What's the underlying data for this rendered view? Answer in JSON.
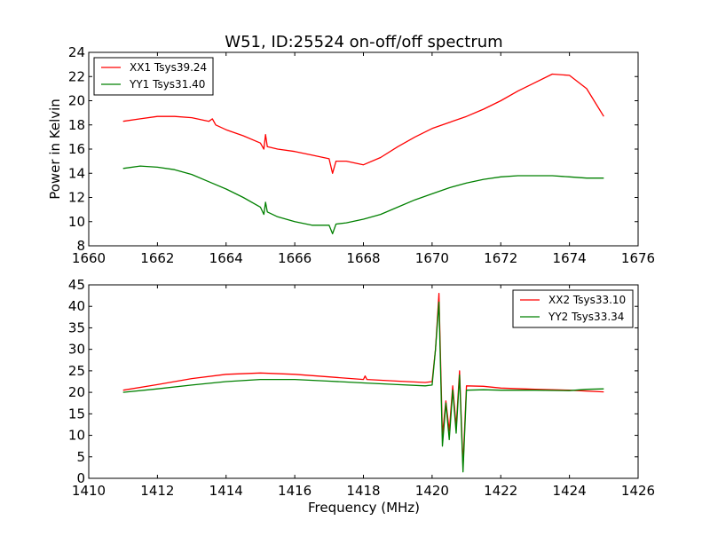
{
  "chart_data": [
    {
      "type": "line",
      "title": "W51, ID:25524 on-off/off spectrum",
      "xlabel": "",
      "ylabel": "Power in Kelvin",
      "xlim": [
        1660,
        1676
      ],
      "ylim": [
        8,
        24
      ],
      "xticks": [
        "1660",
        "1662",
        "1664",
        "1666",
        "1668",
        "1670",
        "1672",
        "1674",
        "1676"
      ],
      "yticks": [
        "8",
        "10",
        "12",
        "14",
        "16",
        "18",
        "20",
        "22",
        "24"
      ],
      "grid": false,
      "legend_position": "top-left",
      "series": [
        {
          "name": "XX1 Tsys39.24",
          "color": "#ff0000",
          "points": [
            [
              1661.0,
              18.3
            ],
            [
              1661.5,
              18.5
            ],
            [
              1662.0,
              18.7
            ],
            [
              1662.5,
              18.7
            ],
            [
              1663.0,
              18.6
            ],
            [
              1663.5,
              18.3
            ],
            [
              1663.6,
              18.5
            ],
            [
              1663.7,
              18.0
            ],
            [
              1664.0,
              17.6
            ],
            [
              1664.5,
              17.1
            ],
            [
              1665.0,
              16.5
            ],
            [
              1665.1,
              16.0
            ],
            [
              1665.15,
              17.2
            ],
            [
              1665.2,
              16.2
            ],
            [
              1665.5,
              16.0
            ],
            [
              1666.0,
              15.8
            ],
            [
              1666.5,
              15.5
            ],
            [
              1667.0,
              15.2
            ],
            [
              1667.1,
              14.0
            ],
            [
              1667.2,
              15.0
            ],
            [
              1667.5,
              15.0
            ],
            [
              1668.0,
              14.7
            ],
            [
              1668.5,
              15.3
            ],
            [
              1669.0,
              16.2
            ],
            [
              1669.5,
              17.0
            ],
            [
              1670.0,
              17.7
            ],
            [
              1670.5,
              18.2
            ],
            [
              1671.0,
              18.7
            ],
            [
              1671.5,
              19.3
            ],
            [
              1672.0,
              20.0
            ],
            [
              1672.5,
              20.8
            ],
            [
              1673.0,
              21.5
            ],
            [
              1673.5,
              22.2
            ],
            [
              1674.0,
              22.1
            ],
            [
              1674.5,
              21.0
            ],
            [
              1675.0,
              18.7
            ]
          ]
        },
        {
          "name": "YY1 Tsys31.40",
          "color": "#008000",
          "points": [
            [
              1661.0,
              14.4
            ],
            [
              1661.5,
              14.6
            ],
            [
              1662.0,
              14.5
            ],
            [
              1662.5,
              14.3
            ],
            [
              1663.0,
              13.9
            ],
            [
              1663.5,
              13.3
            ],
            [
              1664.0,
              12.7
            ],
            [
              1664.5,
              12.0
            ],
            [
              1665.0,
              11.2
            ],
            [
              1665.1,
              10.6
            ],
            [
              1665.15,
              11.6
            ],
            [
              1665.2,
              10.8
            ],
            [
              1665.5,
              10.4
            ],
            [
              1666.0,
              10.0
            ],
            [
              1666.5,
              9.7
            ],
            [
              1667.0,
              9.7
            ],
            [
              1667.1,
              9.0
            ],
            [
              1667.2,
              9.8
            ],
            [
              1667.5,
              9.9
            ],
            [
              1668.0,
              10.2
            ],
            [
              1668.5,
              10.6
            ],
            [
              1669.0,
              11.2
            ],
            [
              1669.5,
              11.8
            ],
            [
              1670.0,
              12.3
            ],
            [
              1670.5,
              12.8
            ],
            [
              1671.0,
              13.2
            ],
            [
              1671.5,
              13.5
            ],
            [
              1672.0,
              13.7
            ],
            [
              1672.5,
              13.8
            ],
            [
              1673.0,
              13.8
            ],
            [
              1673.5,
              13.8
            ],
            [
              1674.0,
              13.7
            ],
            [
              1674.5,
              13.6
            ],
            [
              1675.0,
              13.6
            ]
          ]
        }
      ]
    },
    {
      "type": "line",
      "title": "",
      "xlabel": "Frequency (MHz)",
      "ylabel": "",
      "xlim": [
        1410,
        1426
      ],
      "ylim": [
        0,
        45
      ],
      "xticks": [
        "1410",
        "1412",
        "1414",
        "1416",
        "1418",
        "1420",
        "1422",
        "1424",
        "1426"
      ],
      "yticks": [
        "0",
        "5",
        "10",
        "15",
        "20",
        "25",
        "30",
        "35",
        "40",
        "45"
      ],
      "grid": false,
      "legend_position": "top-right",
      "series": [
        {
          "name": "XX2 Tsys33.10",
          "color": "#ff0000",
          "points": [
            [
              1411.0,
              20.5
            ],
            [
              1412.0,
              21.8
            ],
            [
              1413.0,
              23.2
            ],
            [
              1414.0,
              24.2
            ],
            [
              1415.0,
              24.5
            ],
            [
              1416.0,
              24.2
            ],
            [
              1417.0,
              23.6
            ],
            [
              1418.0,
              23.0
            ],
            [
              1418.05,
              23.8
            ],
            [
              1418.1,
              23.0
            ],
            [
              1419.0,
              22.6
            ],
            [
              1419.8,
              22.3
            ],
            [
              1420.0,
              22.5
            ],
            [
              1420.1,
              30.0
            ],
            [
              1420.2,
              43.0
            ],
            [
              1420.3,
              10.0
            ],
            [
              1420.4,
              18.0
            ],
            [
              1420.5,
              11.0
            ],
            [
              1420.6,
              21.5
            ],
            [
              1420.7,
              12.0
            ],
            [
              1420.8,
              25.0
            ],
            [
              1420.9,
              3.0
            ],
            [
              1421.0,
              21.5
            ],
            [
              1421.5,
              21.4
            ],
            [
              1422.0,
              21.0
            ],
            [
              1423.0,
              20.7
            ],
            [
              1424.0,
              20.5
            ],
            [
              1425.0,
              20.1
            ]
          ]
        },
        {
          "name": "YY2 Tsys33.34",
          "color": "#008000",
          "points": [
            [
              1411.0,
              20.0
            ],
            [
              1412.0,
              20.8
            ],
            [
              1413.0,
              21.7
            ],
            [
              1414.0,
              22.5
            ],
            [
              1415.0,
              23.0
            ],
            [
              1416.0,
              23.0
            ],
            [
              1417.0,
              22.6
            ],
            [
              1418.0,
              22.2
            ],
            [
              1419.0,
              21.8
            ],
            [
              1419.8,
              21.5
            ],
            [
              1420.0,
              21.7
            ],
            [
              1420.1,
              30.0
            ],
            [
              1420.2,
              41.0
            ],
            [
              1420.3,
              7.5
            ],
            [
              1420.4,
              17.5
            ],
            [
              1420.5,
              9.0
            ],
            [
              1420.6,
              20.5
            ],
            [
              1420.7,
              10.5
            ],
            [
              1420.8,
              24.0
            ],
            [
              1420.9,
              1.5
            ],
            [
              1421.0,
              20.5
            ],
            [
              1421.5,
              20.6
            ],
            [
              1422.0,
              20.5
            ],
            [
              1423.0,
              20.5
            ],
            [
              1424.0,
              20.4
            ],
            [
              1424.5,
              20.7
            ],
            [
              1425.0,
              20.8
            ]
          ]
        }
      ]
    }
  ]
}
